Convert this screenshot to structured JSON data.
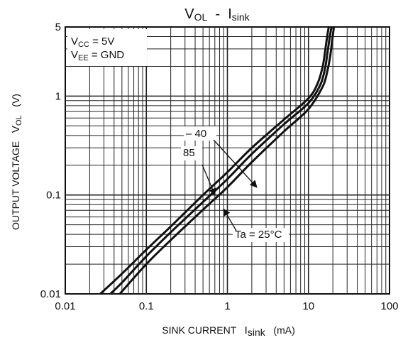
{
  "chart_data": {
    "type": "line",
    "title": "VOL  -  Isink",
    "title_main": "V",
    "title_main_sub": "OL",
    "title_sep": "  -  ",
    "title_curr": "I",
    "title_curr_sub": "sink",
    "xlabel": "SINK CURRENT",
    "xlabel_sym": "I",
    "xlabel_sub": "sink",
    "xlabel_unit": "(mA)",
    "ylabel": "OUTPUT VOLTAGE",
    "ylabel_sym": "V",
    "ylabel_sub": "OL",
    "ylabel_unit": "(V)",
    "x_scale": "log",
    "y_scale": "log",
    "xlim": [
      0.01,
      100
    ],
    "ylim": [
      0.01,
      5
    ],
    "grid": true,
    "xtick_labels": [
      "0.01",
      "0.1",
      "1",
      "10",
      "100"
    ],
    "xtick_values": [
      0.01,
      0.1,
      1,
      10,
      100
    ],
    "ytick_labels": [
      "0.01",
      "0.1",
      "1",
      "5"
    ],
    "ytick_values": [
      0.01,
      0.1,
      1,
      5
    ],
    "conditions": {
      "line1_sym": "V",
      "line1_sub": "CC",
      "line1_rest": " = 5V",
      "line2_sym": "V",
      "line2_sub": "EE",
      "line2_rest": " = GND"
    },
    "series": [
      {
        "name": "-40",
        "x": [
          0.027,
          0.05,
          0.1,
          0.2,
          0.5,
          1,
          2,
          5,
          10,
          13,
          15,
          16,
          17,
          17.8
        ],
        "y": [
          0.01,
          0.016,
          0.028,
          0.048,
          0.1,
          0.17,
          0.3,
          0.58,
          0.95,
          1.35,
          2.0,
          2.8,
          4.0,
          5.0
        ]
      },
      {
        "name": "Ta = 25°C",
        "x": [
          0.036,
          0.05,
          0.1,
          0.2,
          0.5,
          1,
          2,
          5,
          10,
          14,
          16,
          17,
          18,
          19.2
        ],
        "y": [
          0.01,
          0.013,
          0.024,
          0.042,
          0.085,
          0.145,
          0.26,
          0.52,
          0.85,
          1.3,
          1.9,
          2.6,
          3.6,
          5.0
        ]
      },
      {
        "name": "85",
        "x": [
          0.047,
          0.1,
          0.2,
          0.5,
          1,
          2,
          5,
          10,
          15,
          17,
          18.5,
          19.5,
          20.6
        ],
        "y": [
          0.01,
          0.02,
          0.035,
          0.071,
          0.12,
          0.215,
          0.44,
          0.74,
          1.25,
          1.75,
          2.5,
          3.5,
          5.0
        ]
      }
    ],
    "annotations": [
      {
        "text": "– 40",
        "target_series": 0,
        "arrow_to": [
          2.3,
          0.12
        ]
      },
      {
        "text": "85",
        "target_series": 2,
        "arrow_to": [
          0.7,
          0.1
        ]
      },
      {
        "text": "Ta = 25°C",
        "target_series": 1,
        "arrow_to": [
          0.9,
          0.072
        ]
      }
    ],
    "colors": {
      "curve": "#111111",
      "grid": "#222222",
      "background": "#ffffff"
    }
  }
}
